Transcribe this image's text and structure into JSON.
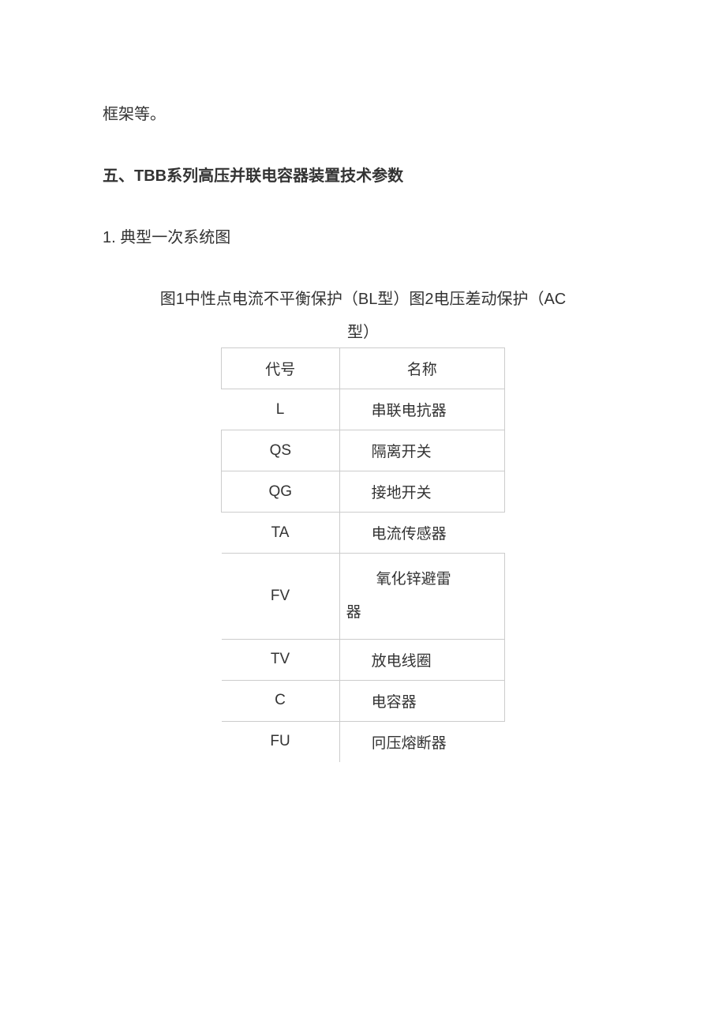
{
  "paragraph1": "框架等。",
  "heading": "五、TBB系列高压并联电容器装置技术参数",
  "subheading": "1. 典型一次系统图",
  "caption_line1": "图1中性点电流不平衡保护（BL型）图2电压差动保护（AC",
  "caption_line2": "型）",
  "table": {
    "header": {
      "col1": "代号",
      "col2": "名称"
    },
    "rows": [
      {
        "code": "L",
        "name": "串联电抗器"
      },
      {
        "code": "QS",
        "name": "隔离开关"
      },
      {
        "code": "QG",
        "name": "接地开关"
      },
      {
        "code": "TA",
        "name": "电流传感器"
      },
      {
        "code": "FV",
        "name": "氧化锌避雷器"
      },
      {
        "code": "TV",
        "name": "放电线圈"
      },
      {
        "code": "C",
        "name": "电容器"
      },
      {
        "code": "FU",
        "name": "冋压熔断器"
      }
    ]
  },
  "table_style": {
    "border_color": "#cccccc",
    "font_size": 19,
    "col1_width": 150,
    "col2_width": 210
  },
  "colors": {
    "text": "#333333",
    "background": "#ffffff"
  },
  "font_size_body": 20
}
